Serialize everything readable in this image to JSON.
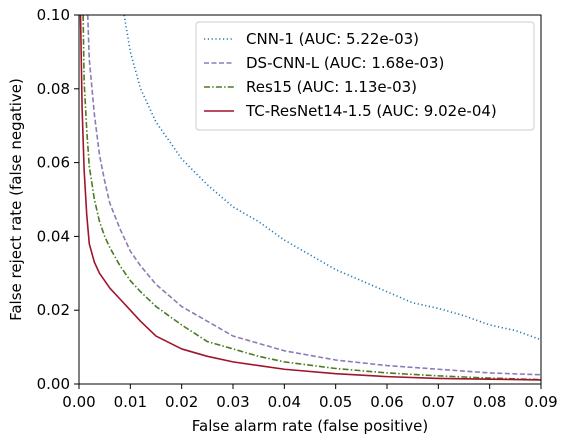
{
  "chart_data": {
    "type": "line",
    "title": "",
    "xlabel": "False alarm rate (false positive)",
    "ylabel": "False reject rate (false negative)",
    "xlim": [
      0,
      0.09
    ],
    "ylim": [
      0,
      0.1
    ],
    "x_ticks": [
      "0.00",
      "0.01",
      "0.02",
      "0.03",
      "0.04",
      "0.05",
      "0.06",
      "0.07",
      "0.08",
      "0.09"
    ],
    "y_ticks": [
      "0.00",
      "0.02",
      "0.04",
      "0.06",
      "0.08",
      "0.10"
    ],
    "grid": false,
    "legend_position": "top-right",
    "series": [
      {
        "name": "CNN-1 (AUC: 5.22e-03)",
        "color": "#1f77b4",
        "dash": "dotted",
        "x": [
          0.0088,
          0.01,
          0.012,
          0.015,
          0.018,
          0.02,
          0.025,
          0.03,
          0.035,
          0.04,
          0.045,
          0.05,
          0.055,
          0.06,
          0.065,
          0.07,
          0.075,
          0.08,
          0.085,
          0.09
        ],
        "y": [
          0.1,
          0.09,
          0.08,
          0.071,
          0.065,
          0.061,
          0.054,
          0.048,
          0.044,
          0.039,
          0.035,
          0.031,
          0.028,
          0.025,
          0.022,
          0.0205,
          0.0185,
          0.016,
          0.0145,
          0.012
        ]
      },
      {
        "name": "DS-CNN-L (AUC: 1.68e-03)",
        "color": "#8c7bb8",
        "dash": "dashed",
        "x": [
          0.0017,
          0.002,
          0.003,
          0.004,
          0.005,
          0.006,
          0.008,
          0.01,
          0.012,
          0.015,
          0.02,
          0.025,
          0.03,
          0.035,
          0.04,
          0.05,
          0.06,
          0.07,
          0.08,
          0.09
        ],
        "y": [
          0.1,
          0.088,
          0.073,
          0.062,
          0.055,
          0.049,
          0.042,
          0.036,
          0.032,
          0.027,
          0.021,
          0.017,
          0.013,
          0.011,
          0.009,
          0.0065,
          0.005,
          0.004,
          0.003,
          0.0025
        ]
      },
      {
        "name": "Res15 (AUC: 1.13e-03)",
        "color": "#4a7c1f",
        "dash": "dashdot",
        "x": [
          0.0008,
          0.001,
          0.0015,
          0.002,
          0.003,
          0.004,
          0.005,
          0.006,
          0.008,
          0.01,
          0.012,
          0.015,
          0.02,
          0.025,
          0.03,
          0.035,
          0.04,
          0.05,
          0.06,
          0.07,
          0.08,
          0.09
        ],
        "y": [
          0.1,
          0.082,
          0.069,
          0.059,
          0.05,
          0.044,
          0.04,
          0.037,
          0.032,
          0.028,
          0.025,
          0.021,
          0.016,
          0.0115,
          0.0095,
          0.0075,
          0.006,
          0.0042,
          0.003,
          0.0022,
          0.0016,
          0.0012
        ]
      },
      {
        "name": "TC-ResNet14-1.5 (AUC: 9.02e-04)",
        "color": "#a0142c",
        "dash": "solid",
        "x": [
          0.0003,
          0.0006,
          0.001,
          0.0015,
          0.002,
          0.003,
          0.004,
          0.005,
          0.006,
          0.008,
          0.01,
          0.012,
          0.015,
          0.02,
          0.025,
          0.03,
          0.035,
          0.04,
          0.05,
          0.06,
          0.07,
          0.08,
          0.09
        ],
        "y": [
          0.1,
          0.075,
          0.058,
          0.046,
          0.038,
          0.033,
          0.03,
          0.028,
          0.026,
          0.023,
          0.02,
          0.017,
          0.013,
          0.0095,
          0.0075,
          0.006,
          0.005,
          0.004,
          0.0028,
          0.002,
          0.0015,
          0.0013,
          0.0011
        ]
      }
    ]
  }
}
